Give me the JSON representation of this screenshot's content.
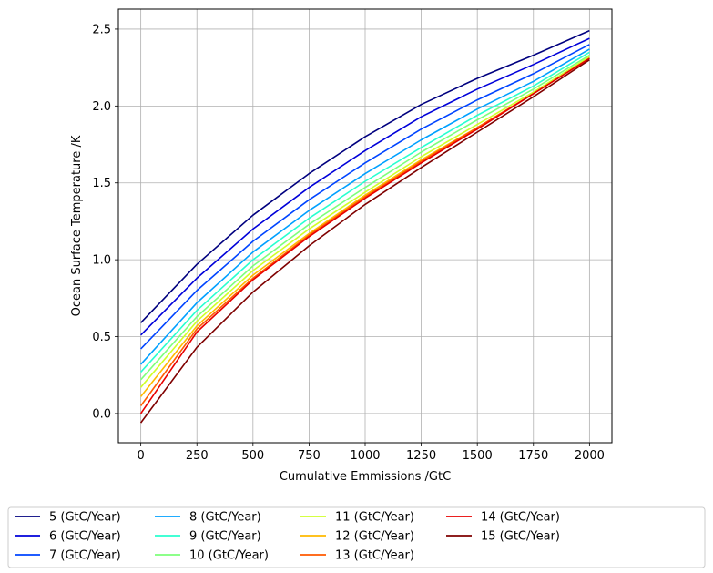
{
  "chart_data": {
    "type": "line",
    "title": "",
    "xlabel": "Cumulative Emmissions /GtC",
    "ylabel": "Ocean Surface Temperature /K",
    "xlim": [
      -100,
      2100
    ],
    "ylim": [
      -0.19,
      2.63
    ],
    "xticks": [
      0,
      250,
      500,
      750,
      1000,
      1250,
      1500,
      1750,
      2000
    ],
    "yticks": [
      0.0,
      0.5,
      1.0,
      1.5,
      2.0,
      2.5
    ],
    "xtick_labels": [
      "0",
      "250",
      "500",
      "750",
      "1000",
      "1250",
      "1500",
      "1750",
      "2000"
    ],
    "ytick_labels": [
      "0.0",
      "0.5",
      "1.0",
      "1.5",
      "2.0",
      "2.5"
    ],
    "grid": true,
    "legend_position": "bottom",
    "legend_columns": 5,
    "series": [
      {
        "name": "5 (GtC/Year)",
        "color": "#00007f",
        "x": [
          0,
          250,
          500,
          750,
          1000,
          1250,
          1500,
          1750,
          2000
        ],
        "y": [
          0.59,
          0.97,
          1.29,
          1.56,
          1.8,
          2.01,
          2.18,
          2.33,
          2.49
        ]
      },
      {
        "name": "6 (GtC/Year)",
        "color": "#0000d9",
        "x": [
          0,
          250,
          500,
          750,
          1000,
          1250,
          1500,
          1750,
          2000
        ],
        "y": [
          0.51,
          0.88,
          1.2,
          1.47,
          1.71,
          1.93,
          2.11,
          2.27,
          2.44
        ]
      },
      {
        "name": "7 (GtC/Year)",
        "color": "#0044ff",
        "x": [
          0,
          250,
          500,
          750,
          1000,
          1250,
          1500,
          1750,
          2000
        ],
        "y": [
          0.42,
          0.8,
          1.12,
          1.39,
          1.63,
          1.85,
          2.04,
          2.21,
          2.4
        ]
      },
      {
        "name": "8 (GtC/Year)",
        "color": "#00a0ff",
        "x": [
          0,
          250,
          500,
          750,
          1000,
          1250,
          1500,
          1750,
          2000
        ],
        "y": [
          0.32,
          0.72,
          1.05,
          1.32,
          1.56,
          1.78,
          1.98,
          2.16,
          2.37
        ]
      },
      {
        "name": "9 (GtC/Year)",
        "color": "#28ffcf",
        "x": [
          0,
          250,
          500,
          750,
          1000,
          1250,
          1500,
          1750,
          2000
        ],
        "y": [
          0.27,
          0.67,
          1.0,
          1.27,
          1.51,
          1.73,
          1.94,
          2.13,
          2.35
        ]
      },
      {
        "name": "10 (GtC/Year)",
        "color": "#7dff7a",
        "x": [
          0,
          250,
          500,
          750,
          1000,
          1250,
          1500,
          1750,
          2000
        ],
        "y": [
          0.22,
          0.63,
          0.96,
          1.23,
          1.47,
          1.7,
          1.91,
          2.11,
          2.33
        ]
      },
      {
        "name": "11 (GtC/Year)",
        "color": "#cfff28",
        "x": [
          0,
          250,
          500,
          750,
          1000,
          1250,
          1500,
          1750,
          2000
        ],
        "y": [
          0.17,
          0.6,
          0.93,
          1.2,
          1.44,
          1.67,
          1.88,
          2.09,
          2.32
        ]
      },
      {
        "name": "12 (GtC/Year)",
        "color": "#ffb900",
        "x": [
          0,
          250,
          500,
          750,
          1000,
          1250,
          1500,
          1750,
          2000
        ],
        "y": [
          0.11,
          0.57,
          0.9,
          1.17,
          1.42,
          1.65,
          1.86,
          2.08,
          2.31
        ]
      },
      {
        "name": "13 (GtC/Year)",
        "color": "#ff5a00",
        "x": [
          0,
          250,
          500,
          750,
          1000,
          1250,
          1500,
          1750,
          2000
        ],
        "y": [
          0.05,
          0.55,
          0.88,
          1.16,
          1.41,
          1.64,
          1.86,
          2.08,
          2.31
        ]
      },
      {
        "name": "14 (GtC/Year)",
        "color": "#e80000",
        "x": [
          0,
          250,
          500,
          750,
          1000,
          1250,
          1500,
          1750,
          2000
        ],
        "y": [
          0.0,
          0.53,
          0.87,
          1.15,
          1.4,
          1.63,
          1.85,
          2.08,
          2.31
        ]
      },
      {
        "name": "15 (GtC/Year)",
        "color": "#7f0000",
        "x": [
          0,
          250,
          500,
          750,
          1000,
          1250,
          1500,
          1750,
          2000
        ],
        "y": [
          -0.06,
          0.43,
          0.79,
          1.09,
          1.36,
          1.6,
          1.83,
          2.06,
          2.3
        ]
      }
    ]
  }
}
